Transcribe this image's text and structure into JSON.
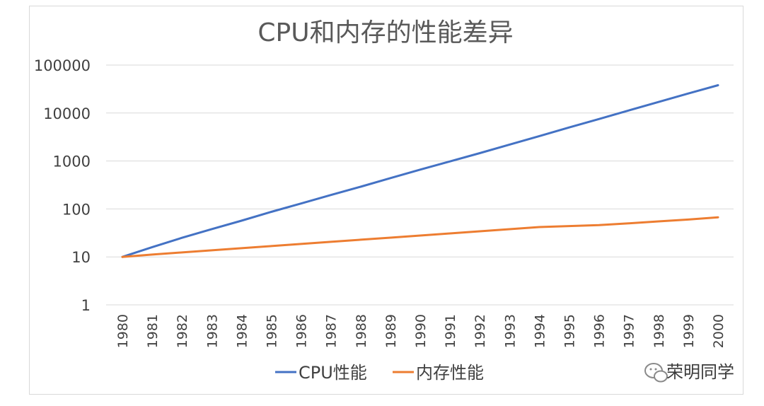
{
  "chart_data": {
    "type": "line",
    "title": "CPU和内存的性能差异",
    "xlabel": "",
    "ylabel": "",
    "yscale": "log",
    "ylim": [
      1,
      100000
    ],
    "yticks": [
      "1",
      "10",
      "100",
      "1000",
      "10000",
      "100000"
    ],
    "grid": true,
    "legend": "bottom",
    "x": [
      "1980",
      "1981",
      "1982",
      "1983",
      "1984",
      "1985",
      "1986",
      "1987",
      "1988",
      "1989",
      "1990",
      "1991",
      "1992",
      "1993",
      "1994",
      "1995",
      "1996",
      "1997",
      "1998",
      "1999",
      "2000"
    ],
    "series": [
      {
        "name": "CPU性能",
        "color": "#4472c4",
        "values": [
          10,
          16,
          25,
          38,
          57,
          87,
          130,
          195,
          290,
          440,
          660,
          980,
          1460,
          2200,
          3300,
          5000,
          7500,
          11300,
          17000,
          25500,
          38000
        ]
      },
      {
        "name": "内存性能",
        "color": "#ed7d31",
        "values": [
          10,
          11.2,
          12.4,
          13.7,
          15.2,
          16.8,
          18.6,
          20.6,
          22.8,
          25.2,
          27.9,
          30.9,
          34.2,
          37.9,
          41.9,
          44,
          46,
          50,
          55,
          60,
          67
        ]
      }
    ]
  },
  "watermark": {
    "text": "荣明同学",
    "icon": "wechat-icon"
  }
}
